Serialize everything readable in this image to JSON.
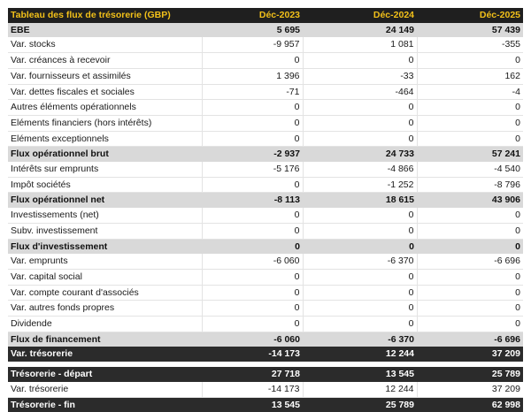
{
  "table": {
    "title": "Tableau des flux de trésorerie (GBP)",
    "columns": [
      "Déc-2023",
      "Déc-2024",
      "Déc-2025"
    ],
    "rows": [
      {
        "label": "EBE",
        "values": [
          "5 695",
          "24 149",
          "57 439"
        ],
        "style": "subtotal"
      },
      {
        "label": "Var. stocks",
        "values": [
          "-9 957",
          "1 081",
          "-355"
        ],
        "style": "normal"
      },
      {
        "label": "Var. créances à recevoir",
        "values": [
          "0",
          "0",
          "0"
        ],
        "style": "normal"
      },
      {
        "label": "Var. fournisseurs et assimilés",
        "values": [
          "1 396",
          "-33",
          "162"
        ],
        "style": "normal"
      },
      {
        "label": "Var. dettes fiscales et sociales",
        "values": [
          "-71",
          "-464",
          "-4"
        ],
        "style": "normal"
      },
      {
        "label": "Autres éléments opérationnels",
        "values": [
          "0",
          "0",
          "0"
        ],
        "style": "normal"
      },
      {
        "label": "Eléments financiers (hors intérêts)",
        "values": [
          "0",
          "0",
          "0"
        ],
        "style": "normal"
      },
      {
        "label": "Eléments exceptionnels",
        "values": [
          "0",
          "0",
          "0"
        ],
        "style": "normal"
      },
      {
        "label": "Flux opérationnel brut",
        "values": [
          "-2 937",
          "24 733",
          "57 241"
        ],
        "style": "subtotal"
      },
      {
        "label": "Intérêts sur emprunts",
        "values": [
          "-5 176",
          "-4 866",
          "-4 540"
        ],
        "style": "normal"
      },
      {
        "label": "Impôt sociétés",
        "values": [
          "0",
          "-1 252",
          "-8 796"
        ],
        "style": "normal"
      },
      {
        "label": "Flux opérationnel net",
        "values": [
          "-8 113",
          "18 615",
          "43 906"
        ],
        "style": "subtotal"
      },
      {
        "label": "Investissements (net)",
        "values": [
          "0",
          "0",
          "0"
        ],
        "style": "normal"
      },
      {
        "label": "Subv. investissement",
        "values": [
          "0",
          "0",
          "0"
        ],
        "style": "normal"
      },
      {
        "label": "Flux d'investissement",
        "values": [
          "0",
          "0",
          "0"
        ],
        "style": "subtotal"
      },
      {
        "label": "Var. emprunts",
        "values": [
          "-6 060",
          "-6 370",
          "-6 696"
        ],
        "style": "normal"
      },
      {
        "label": "Var. capital social",
        "values": [
          "0",
          "0",
          "0"
        ],
        "style": "normal"
      },
      {
        "label": "Var. compte courant d'associés",
        "values": [
          "0",
          "0",
          "0"
        ],
        "style": "normal"
      },
      {
        "label": "Var. autres fonds propres",
        "values": [
          "0",
          "0",
          "0"
        ],
        "style": "normal"
      },
      {
        "label": "Dividende",
        "values": [
          "0",
          "0",
          "0"
        ],
        "style": "normal"
      },
      {
        "label": "Flux de financement",
        "values": [
          "-6 060",
          "-6 370",
          "-6 696"
        ],
        "style": "subtotal"
      },
      {
        "label": "Var. trésorerie",
        "values": [
          "-14 173",
          "12 244",
          "37 209"
        ],
        "style": "dark"
      },
      {
        "label": "",
        "values": [
          "",
          "",
          ""
        ],
        "style": "gap"
      },
      {
        "label": "Trésorerie - départ",
        "values": [
          "27 718",
          "13 545",
          "25 789"
        ],
        "style": "dark"
      },
      {
        "label": "Var. trésorerie",
        "values": [
          "-14 173",
          "12 244",
          "37 209"
        ],
        "style": "normal"
      },
      {
        "label": "Trésorerie - fin",
        "values": [
          "13 545",
          "25 789",
          "62 998"
        ],
        "style": "dark"
      }
    ]
  }
}
